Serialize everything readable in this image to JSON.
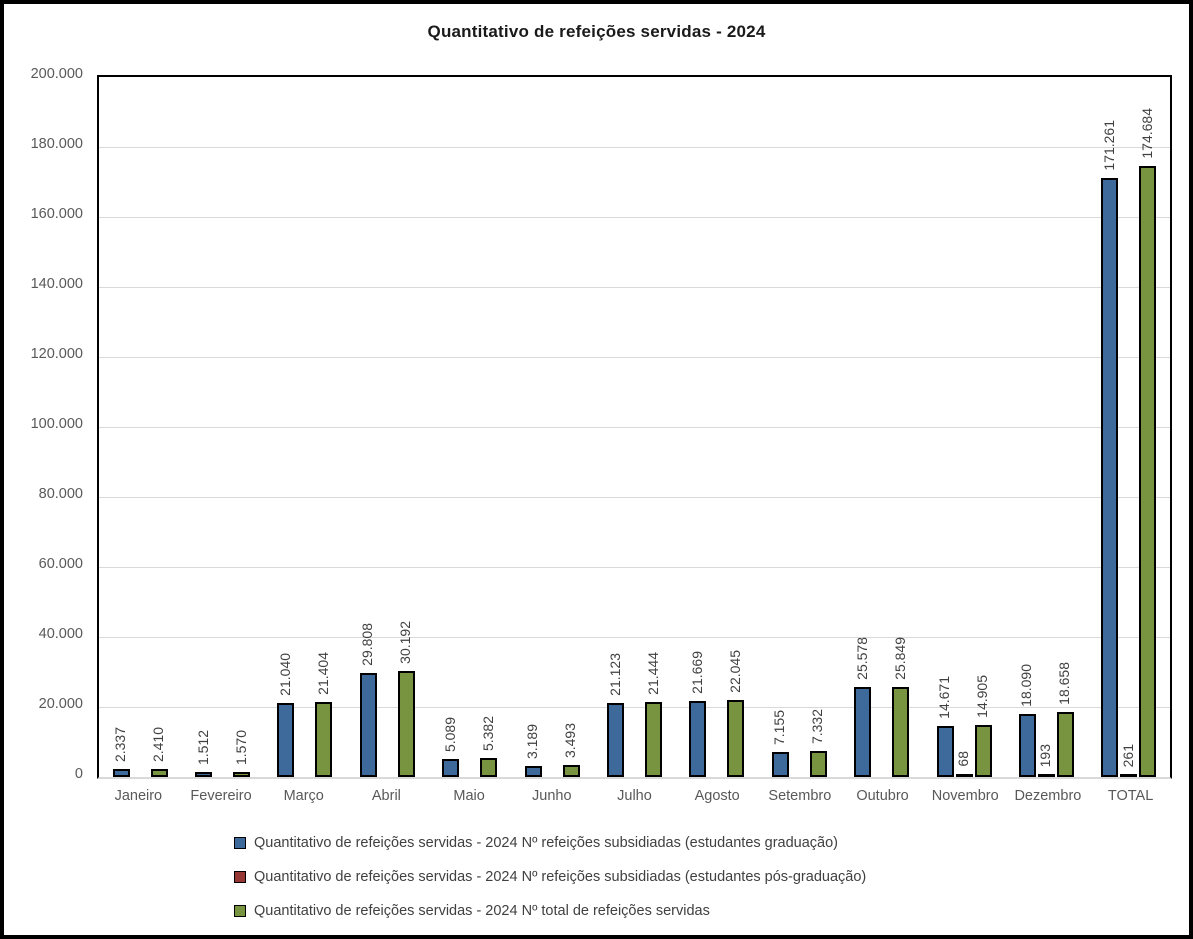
{
  "chart_data": {
    "type": "bar",
    "title": "Quantitativo de refeições servidas - 2024",
    "categories": [
      "Janeiro",
      "Fevereiro",
      "Março",
      "Abril",
      "Maio",
      "Junho",
      "Julho",
      "Agosto",
      "Setembro",
      "Outubro",
      "Novembro",
      "Dezembro",
      "TOTAL"
    ],
    "series": [
      {
        "name": "Quantitativo de refeições servidas - 2024 Nº refeições subsidiadas (estudantes graduação)",
        "color": "#3E699B",
        "values": [
          2337,
          1512,
          21040,
          29808,
          5089,
          3189,
          21123,
          21669,
          7155,
          25578,
          14671,
          18090,
          171261
        ],
        "labels": [
          "2.337",
          "1.512",
          "21.040",
          "29.808",
          "5.089",
          "3.189",
          "21.123",
          "21.669",
          "7.155",
          "25.578",
          "14.671",
          "18.090",
          "171.261"
        ]
      },
      {
        "name": "Quantitativo de refeições servidas - 2024 Nº refeições subsidiadas (estudantes pós-graduação)",
        "color": "#953735",
        "values": [
          0,
          0,
          0,
          0,
          0,
          0,
          0,
          0,
          0,
          0,
          68,
          193,
          261
        ],
        "labels": [
          "",
          "",
          "",
          "",
          "",
          "",
          "",
          "",
          "",
          "",
          "68",
          "193",
          "261"
        ]
      },
      {
        "name": "Quantitativo de refeições servidas - 2024 Nº total de refeições servidas",
        "color": "#789440",
        "values": [
          2410,
          1570,
          21404,
          30192,
          5382,
          3493,
          21444,
          22045,
          7332,
          25849,
          14905,
          18658,
          174684
        ],
        "labels": [
          "2.410",
          "1.570",
          "21.404",
          "30.192",
          "5.382",
          "3.493",
          "21.444",
          "22.045",
          "7.332",
          "25.849",
          "14.905",
          "18.658",
          "174.684"
        ]
      }
    ],
    "y_axis": {
      "min": 0,
      "max": 200000,
      "step": 20000,
      "tick_labels": [
        "0",
        "20.000",
        "40.000",
        "60.000",
        "80.000",
        "100.000",
        "120.000",
        "140.000",
        "160.000",
        "180.000",
        "200.000"
      ]
    },
    "legend_position": "bottom",
    "grid": true,
    "colors": {
      "gridline": "#D9D9D9",
      "axis_text": "#595959",
      "data_label_text": "#404040",
      "bar_outline": "#000000"
    }
  }
}
